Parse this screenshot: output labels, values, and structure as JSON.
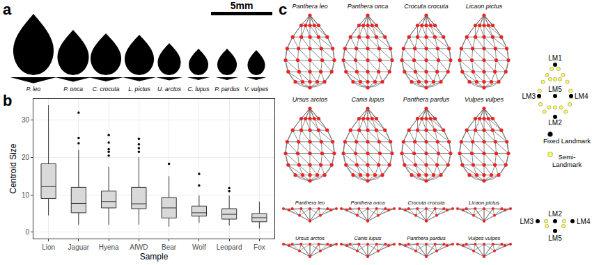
{
  "panel_a": {
    "label": "a",
    "scale_bar": "5mm",
    "species": [
      "P. leo",
      "P. onca",
      "C. crocuta",
      "L. pictus",
      "U. arctos",
      "C. lupus",
      "P. pardus",
      "V. vulpes"
    ]
  },
  "panel_b": {
    "label": "b"
  },
  "panel_c": {
    "label": "c",
    "species": [
      "Panthera leo",
      "Panthera onca",
      "Crocuta crocuta",
      "Licaon pictus",
      "Ursus arctos",
      "Canis lupus",
      "Panthera pardus",
      "Vulpes vulpes"
    ],
    "landmarks_top": [
      "LM1",
      "LM2",
      "LM3",
      "LM4",
      "LM5"
    ],
    "landmarks_side": [
      "LM3",
      "LM2",
      "LM4",
      "LM5"
    ],
    "legend": [
      {
        "lines": [
          "Fixed Landmark"
        ],
        "color": "#000000"
      },
      {
        "lines": [
          "Semi-",
          "Landmark"
        ],
        "color": "#ffff55"
      }
    ]
  },
  "chart_data": {
    "type": "box",
    "x_label": "Sample",
    "y_label": "Centroid Size",
    "categories": [
      "Lion",
      "Jaguar",
      "Hyena",
      "AfWD",
      "Bear",
      "Wolf",
      "Leopard",
      "Fox"
    ],
    "lowerfence": [
      4.5,
      2,
      2,
      2,
      1.5,
      2.5,
      1.8,
      1
    ],
    "q1": [
      9,
      5.2,
      6.5,
      6.3,
      3.8,
      4.3,
      3.5,
      2.8
    ],
    "median": [
      12.2,
      7.7,
      8.2,
      7.6,
      6.5,
      5.2,
      4.8,
      3.9
    ],
    "q3": [
      18.3,
      12,
      11,
      12,
      9.3,
      7,
      6.3,
      5
    ],
    "upperfence": [
      34,
      22,
      17.5,
      20,
      15,
      9.8,
      9.8,
      8.2
    ],
    "outliers": [
      [],
      [
        23.8,
        25.2,
        32
      ],
      [
        20.5,
        21.5,
        22.2,
        24,
        26
      ],
      [
        21.5,
        22.5,
        23.5,
        25
      ],
      [
        18.3
      ],
      [
        12.5,
        15.6
      ],
      [
        11,
        11.8
      ],
      []
    ],
    "color": "#d9d9d9",
    "ylim": [
      -1.7,
      35.7
    ],
    "yticks": [
      0,
      10,
      20,
      30
    ],
    "grid": true
  }
}
